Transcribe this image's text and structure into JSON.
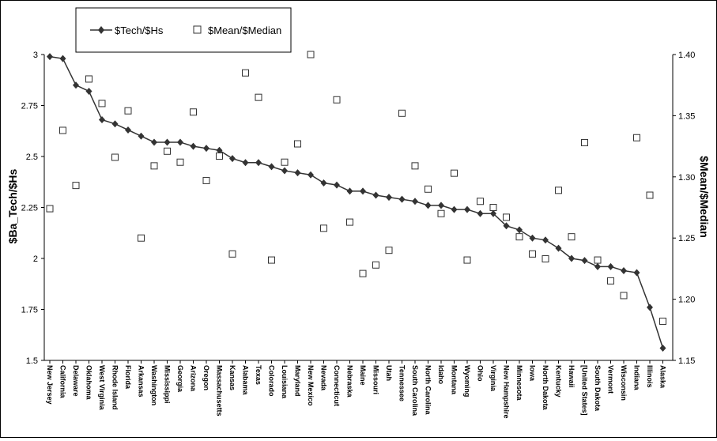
{
  "chart_data": {
    "type": "line",
    "categories": [
      "New Jersey",
      "California",
      "Delaware",
      "Oklahoma",
      "West Virginia",
      "Rhode Island",
      "Florida",
      "Arkansas",
      "Washington",
      "Mississippi",
      "Georgia",
      "Arizona",
      "Oregon",
      "Massachusetts",
      "Kansas",
      "Alabama",
      "Texas",
      "Colorado",
      "Louisiana",
      "Maryland",
      "New Mexico",
      "Nevada",
      "Connecticut",
      "Nebraska",
      "Maine",
      "Missouri",
      "Utah",
      "Tennessee",
      "South Carolina",
      "North Carolina",
      "Idaho",
      "Montana",
      "Wyoming",
      "Ohio",
      "Virginia",
      "New Hampshire",
      "Minnesota",
      "Iowa",
      "North Dakota",
      "Kentucky",
      "Hawaii",
      "[United States]",
      "South Dakota",
      "Vermont",
      "Wisconsin",
      "Indiana",
      "Illinois",
      "Alaska"
    ],
    "series": [
      {
        "name": "$Tech/$Hs",
        "axis": "left",
        "marker": "diamond",
        "line": true,
        "color": "#333333",
        "values": [
          2.99,
          2.98,
          2.85,
          2.82,
          2.68,
          2.66,
          2.63,
          2.6,
          2.57,
          2.57,
          2.57,
          2.55,
          2.54,
          2.53,
          2.49,
          2.47,
          2.47,
          2.45,
          2.43,
          2.42,
          2.41,
          2.37,
          2.36,
          2.33,
          2.33,
          2.31,
          2.3,
          2.29,
          2.28,
          2.26,
          2.26,
          2.24,
          2.24,
          2.22,
          2.22,
          2.16,
          2.14,
          2.1,
          2.09,
          2.05,
          2.0,
          1.99,
          1.96,
          1.96,
          1.94,
          1.93,
          1.76,
          1.56
        ]
      },
      {
        "name": "$Mean/$Median",
        "axis": "right",
        "marker": "square",
        "line": false,
        "color": "#333333",
        "values": [
          1.274,
          1.338,
          1.293,
          1.38,
          1.36,
          1.316,
          1.354,
          1.25,
          1.309,
          1.321,
          1.312,
          1.353,
          1.297,
          1.317,
          1.237,
          1.385,
          1.365,
          1.232,
          1.312,
          1.327,
          1.4,
          1.258,
          1.363,
          1.263,
          1.221,
          1.228,
          1.24,
          1.352,
          1.309,
          1.29,
          1.27,
          1.303,
          1.232,
          1.28,
          1.275,
          1.267,
          1.251,
          1.237,
          1.233,
          1.289,
          1.251,
          1.328,
          1.232,
          1.215,
          1.203,
          1.332,
          1.285,
          1.182
        ]
      }
    ],
    "ylabel": "$Ba_Tech/$Hs",
    "ylabel_right": "$Mean/$Median",
    "ylim": [
      1.5,
      3.0
    ],
    "ylim_right": [
      1.15,
      1.4
    ],
    "yticks": [
      "1.5",
      "1.75",
      "2",
      "2.25",
      "2.5",
      "2.75",
      "3"
    ],
    "yticks_right": [
      "1.15",
      "1.20",
      "1.25",
      "1.30",
      "1.35",
      "1.40"
    ],
    "legend_placement": "top-left",
    "grid": false
  }
}
